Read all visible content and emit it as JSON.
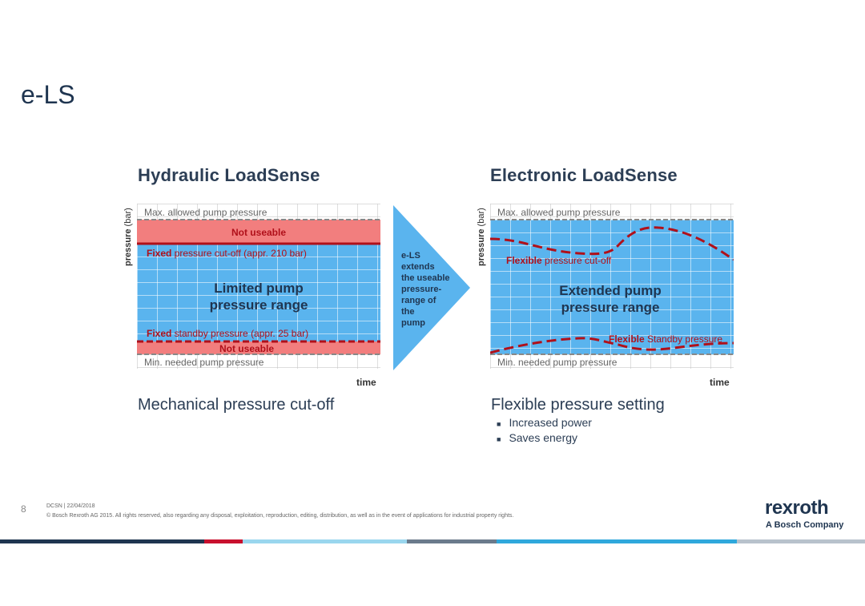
{
  "slide": {
    "title": "e-LS",
    "page_number": "8"
  },
  "left": {
    "title": "Hydraulic LoadSense",
    "y_axis": "pressure",
    "y_unit": "(bar)",
    "x_axis": "time",
    "max_label": "Max. allowed pump pressure",
    "min_label": "Min. needed pump pressure",
    "not_useable_top": "Not useable",
    "not_useable_bottom": "Not useable",
    "cutoff_bold": "Fixed",
    "cutoff_rest": " pressure cut-off (appr. 210 bar)",
    "standby_bold": "Fixed",
    "standby_rest": " standby pressure (appr. 25 bar)",
    "center_line1": "Limited pump",
    "center_line2": "pressure range",
    "subtitle": "Mechanical pressure cut-off"
  },
  "arrow": {
    "lines": [
      "e-LS",
      "extends",
      "the useable",
      "pressure-",
      "range of",
      "the",
      "pump"
    ]
  },
  "right": {
    "title": "Electronic LoadSense",
    "y_axis": "pressure",
    "y_unit": "(bar)",
    "x_axis": "time",
    "max_label": "Max. allowed pump pressure",
    "min_label": "Min. needed pump pressure",
    "cutoff_bold": "Flexible",
    "cutoff_rest": " pressure cut-off",
    "standby_bold": "Flexible",
    "standby_rest": " Standby pressure",
    "center_line1": "Extended pump",
    "center_line2": "pressure range",
    "subtitle": "Flexible pressure setting",
    "bullets": [
      "Increased power",
      "Saves energy"
    ]
  },
  "footer": {
    "line1": "DCSN | 22/04/2018",
    "line2": "© Bosch Rexroth AG 2015. All rights reserved, also regarding any disposal, exploitation, reproduction, editing, distribution, as well as in the event of applications for industrial property rights.",
    "logo": "rexroth",
    "logo_sub": "A Bosch Company"
  },
  "colors": {
    "chart_blue": "#5ab4ee",
    "not_useable_red": "#f27e7e",
    "dash_red": "#b0101a",
    "arrow_blue": "#5ab4ee",
    "title_navy": "#1f3550"
  }
}
